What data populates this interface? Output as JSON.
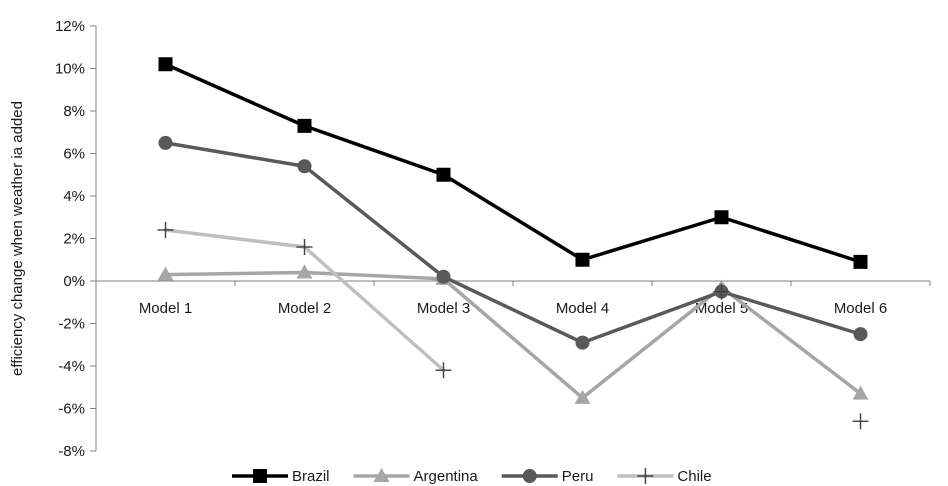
{
  "chart_data": {
    "type": "line",
    "title": "",
    "xlabel": "",
    "ylabel": "efficiency change when weather ia added",
    "categories": [
      "Model 1",
      "Model 2",
      "Model 3",
      "Model 4",
      "Model 5",
      "Model 6"
    ],
    "ylim": [
      -8,
      12
    ],
    "yticks": [
      -8,
      -6,
      -4,
      -2,
      0,
      2,
      4,
      6,
      8,
      10,
      12
    ],
    "ytick_labels": [
      "-8%",
      "-6%",
      "-4%",
      "-2%",
      "0%",
      "2%",
      "4%",
      "6%",
      "8%",
      "10%",
      "12%"
    ],
    "grid": false,
    "legend_position": "bottom",
    "series": [
      {
        "name": "Brazil",
        "values": [
          10.2,
          7.3,
          5.0,
          1.0,
          3.0,
          0.9
        ],
        "color": "#000000",
        "marker": "square",
        "connected": [
          true,
          true,
          true,
          true,
          true
        ]
      },
      {
        "name": "Argentina",
        "values": [
          0.3,
          0.4,
          0.1,
          -5.5,
          -0.3,
          -5.3
        ],
        "color": "#a6a6a6",
        "marker": "triangle",
        "connected": [
          true,
          true,
          true,
          true,
          true
        ]
      },
      {
        "name": "Peru",
        "values": [
          6.5,
          5.4,
          0.2,
          -2.9,
          -0.5,
          -2.5
        ],
        "color": "#595959",
        "marker": "circle",
        "connected": [
          true,
          true,
          true,
          true,
          true
        ]
      },
      {
        "name": "Chile",
        "values": [
          2.4,
          1.6,
          -4.2,
          null,
          -0.5,
          -6.6
        ],
        "color": "#bfbfbf",
        "marker": "plus",
        "connected": [
          true,
          true,
          false,
          false,
          false
        ]
      }
    ]
  }
}
